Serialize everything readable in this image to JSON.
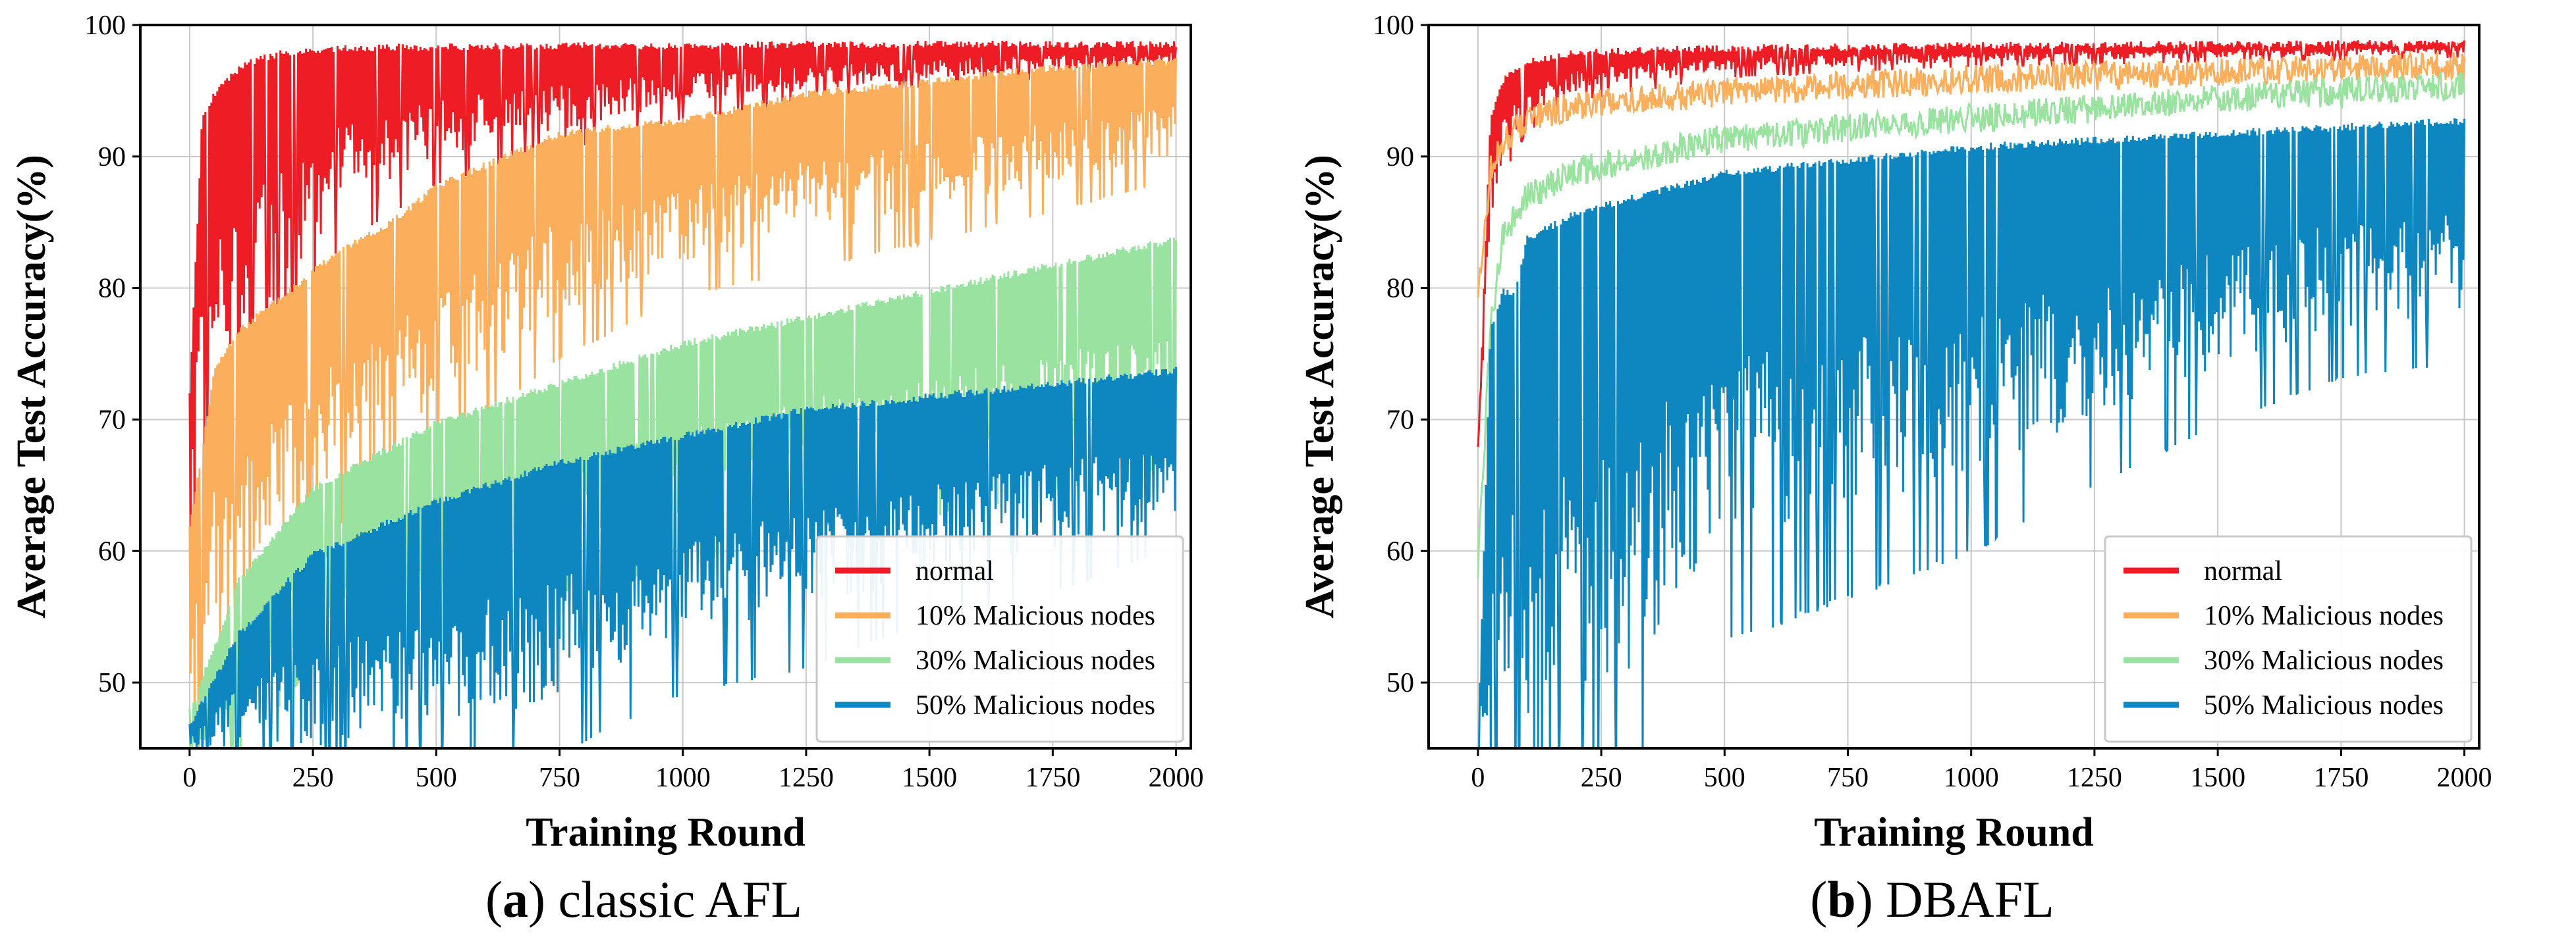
{
  "chart_data": [
    {
      "type": "line",
      "caption_letter": "a",
      "caption_text": "classic AFL",
      "xlabel": "Training Round",
      "ylabel": "Average Test Accuracy(%)",
      "xlim": [
        -100,
        2030
      ],
      "ylim": [
        45,
        100
      ],
      "xticks": [
        0,
        250,
        500,
        750,
        1000,
        1250,
        1500,
        1750,
        2000
      ],
      "yticks": [
        50,
        60,
        70,
        80,
        90,
        100
      ],
      "grid": true,
      "legend_position": "bottom-right",
      "series": [
        {
          "name": "normal",
          "color": "#ee1c24",
          "x": [
            0,
            25,
            50,
            100,
            150,
            200,
            250,
            300,
            400,
            500,
            750,
            1000,
            1250,
            1500,
            1750,
            2000
          ],
          "upper": [
            72,
            93,
            95,
            97,
            97.8,
            98.2,
            98.4,
            98.5,
            98.6,
            98.6,
            98.7,
            98.7,
            98.8,
            98.8,
            98.8,
            98.8
          ],
          "lower": [
            60,
            72,
            74,
            75,
            78,
            80,
            83,
            86,
            88,
            90,
            92,
            94,
            95,
            96,
            96.5,
            97
          ]
        },
        {
          "name": "10% Malicious nodes",
          "color": "#fbae5c",
          "x": [
            0,
            50,
            100,
            200,
            300,
            400,
            500,
            750,
            1000,
            1250,
            1500,
            1750,
            2000
          ],
          "upper": [
            62,
            74,
            77,
            80,
            83,
            85,
            88,
            92,
            93,
            95,
            96,
            97,
            97.5
          ],
          "lower": [
            45,
            55,
            58,
            62,
            66,
            68,
            71,
            78,
            82,
            84,
            86,
            88,
            90
          ]
        },
        {
          "name": "30% Malicious nodes",
          "color": "#99e2a0",
          "x": [
            0,
            100,
            250,
            500,
            750,
            1000,
            1250,
            1500,
            1750,
            2000
          ],
          "upper": [
            48,
            58,
            65,
            70,
            73,
            76,
            78,
            80,
            82,
            84
          ],
          "lower": [
            45,
            47,
            54,
            57,
            60,
            62,
            65,
            66,
            68,
            70
          ]
        },
        {
          "name": "50% Malicious nodes",
          "color": "#0e86bf",
          "x": [
            0,
            100,
            250,
            500,
            750,
            1000,
            1250,
            1500,
            1750,
            2000
          ],
          "upper": [
            47,
            54,
            60,
            64,
            67,
            69,
            71,
            72,
            73,
            74
          ],
          "lower": [
            45,
            45,
            45,
            46,
            49,
            53,
            55,
            58,
            60,
            63
          ]
        }
      ]
    },
    {
      "type": "line",
      "caption_letter": "b",
      "caption_text": "DBAFL",
      "xlabel": "Training Round",
      "ylabel": "Average Test Accuracy(%)",
      "xlim": [
        -100,
        2030
      ],
      "ylim": [
        45,
        100
      ],
      "xticks": [
        0,
        250,
        500,
        750,
        1000,
        1250,
        1500,
        1750,
        2000
      ],
      "yticks": [
        50,
        60,
        70,
        80,
        90,
        100
      ],
      "grid": true,
      "legend_position": "bottom-right",
      "series": [
        {
          "name": "normal",
          "color": "#ee1c24",
          "x": [
            0,
            25,
            50,
            100,
            200,
            500,
            1000,
            1500,
            2000
          ],
          "upper": [
            68,
            93,
            96,
            97.5,
            98.2,
            98.5,
            98.7,
            98.8,
            98.9
          ],
          "lower": [
            67,
            85,
            90,
            93,
            95,
            96.5,
            97.2,
            97.5,
            97.8
          ]
        },
        {
          "name": "10% Malicious nodes",
          "color": "#fbae5c",
          "x": [
            0,
            25,
            50,
            100,
            200,
            500,
            1000,
            1500,
            2000
          ],
          "upper": [
            80,
            90,
            92,
            94,
            95,
            96,
            97,
            97.5,
            98
          ]
        },
        {
          "name": "30% Malicious nodes",
          "color": "#99e2a0",
          "x": [
            0,
            25,
            50,
            100,
            200,
            500,
            1000,
            1500,
            2000
          ],
          "upper": [
            60,
            78,
            85,
            88,
            90,
            92.5,
            94,
            95.5,
            96.5
          ]
        },
        {
          "name": "50% Malicious nodes",
          "color": "#0e86bf",
          "x": [
            0,
            25,
            50,
            75,
            100,
            200,
            300,
            500,
            750,
            1000,
            1250,
            1500,
            1750,
            2000
          ],
          "upper": [
            45,
            77,
            80,
            80,
            84,
            86,
            87,
            89,
            90,
            91,
            91.5,
            92,
            92.5,
            93
          ],
          "lower": [
            45,
            45,
            45,
            45,
            45,
            45,
            50,
            60,
            63,
            66,
            70,
            74,
            77,
            78
          ]
        }
      ]
    }
  ]
}
